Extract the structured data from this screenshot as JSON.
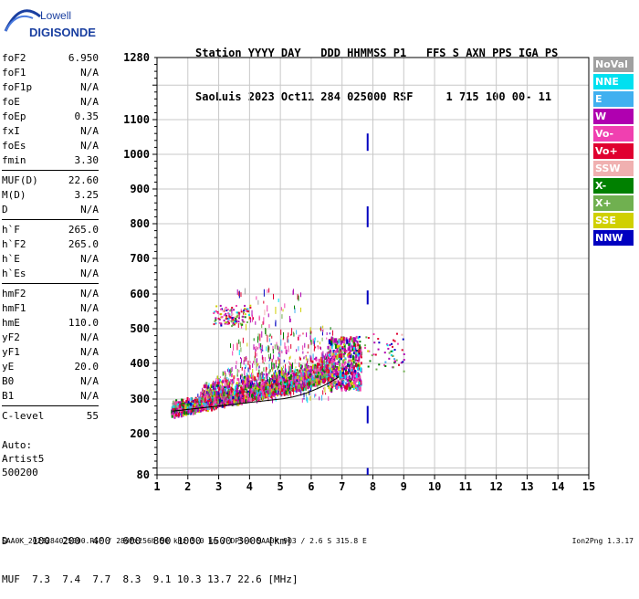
{
  "logo": {
    "line1": "Lowell",
    "line2": "DIGISONDE"
  },
  "header": {
    "row1": "Station YYYY DAY   DDD HHMMSS P1   FFS S AXN PPS IGA PS",
    "row2": "SaoLuis 2023 Oct11 284 025000 RSF     1 715 100 00- 11"
  },
  "params": [
    [
      {
        "n": "foF2",
        "v": "6.950"
      },
      {
        "n": "foF1",
        "v": "N/A"
      },
      {
        "n": "foF1p",
        "v": "N/A"
      },
      {
        "n": "foE",
        "v": "N/A"
      },
      {
        "n": "foEp",
        "v": "0.35"
      },
      {
        "n": "fxI",
        "v": "N/A"
      },
      {
        "n": "foEs",
        "v": "N/A"
      },
      {
        "n": "fmin",
        "v": "3.30"
      }
    ],
    [
      {
        "n": "MUF(D)",
        "v": "22.60"
      },
      {
        "n": "M(D)",
        "v": "3.25"
      },
      {
        "n": "D",
        "v": "N/A"
      }
    ],
    [
      {
        "n": "h`F",
        "v": "265.0"
      },
      {
        "n": "h`F2",
        "v": "265.0"
      },
      {
        "n": "h`E",
        "v": "N/A"
      },
      {
        "n": "h`Es",
        "v": "N/A"
      }
    ],
    [
      {
        "n": "hmF2",
        "v": "N/A"
      },
      {
        "n": "hmF1",
        "v": "N/A"
      },
      {
        "n": "hmE",
        "v": "110.0"
      },
      {
        "n": "yF2",
        "v": "N/A"
      },
      {
        "n": "yF1",
        "v": "N/A"
      },
      {
        "n": "yE",
        "v": "20.0"
      },
      {
        "n": "B0",
        "v": "N/A"
      },
      {
        "n": "B1",
        "v": "N/A"
      }
    ],
    [
      {
        "n": "C-level",
        "v": "55"
      }
    ]
  ],
  "auto": {
    "line1": "Auto:",
    "line2": "Artist5",
    "line3": "500200"
  },
  "legend": [
    {
      "label": "NoVal",
      "color": "#a0a0a0"
    },
    {
      "label": "NNE",
      "color": "#00e0f0"
    },
    {
      "label": "E",
      "color": "#40b0f0"
    },
    {
      "label": "W",
      "color": "#b000b0"
    },
    {
      "label": "Vo-",
      "color": "#f040b0"
    },
    {
      "label": "Vo+",
      "color": "#e00030"
    },
    {
      "label": "SSW",
      "color": "#f0b0b0"
    },
    {
      "label": "X-",
      "color": "#008000"
    },
    {
      "label": "X+",
      "color": "#70b050"
    },
    {
      "label": "SSE",
      "color": "#d0d000"
    },
    {
      "label": "NNW",
      "color": "#0000c0"
    }
  ],
  "axes": {
    "y_ticks": [
      80,
      200,
      300,
      400,
      500,
      600,
      700,
      800,
      900,
      1000,
      1100,
      1280
    ],
    "x_ticks": [
      1,
      2,
      3,
      4,
      5,
      6,
      7,
      8,
      9,
      10,
      11,
      12,
      13,
      14,
      15
    ]
  },
  "distance": {
    "row1": "D    100  200  400  600  800 1000 1500 3000 [km]",
    "row2": "MUF  7.3  7.4  7.7  8.3  9.1 10.3 13.7 22.6 [MHz]"
  },
  "footer": "SAA0K_2023284025000.RSF / 280fx256h 50 kHz 5.0 km / DPS-4 SAA0K 903 / 2.6 S 315.8 E",
  "version": "Ion2Png 1.3.17"
}
